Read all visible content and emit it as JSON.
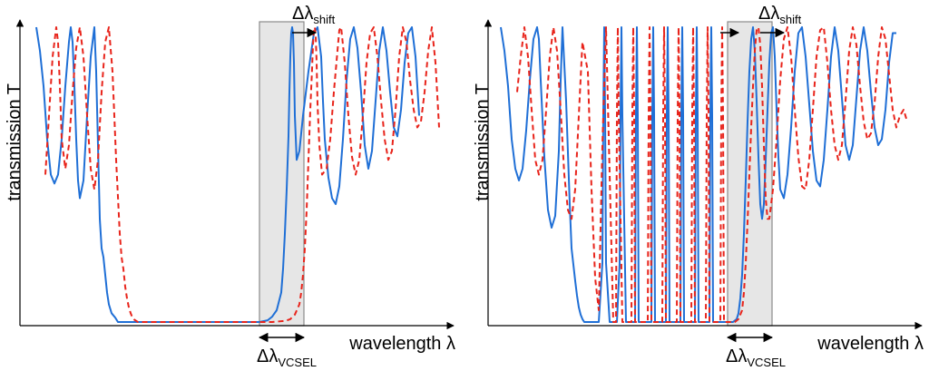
{
  "chart_data": [
    {
      "type": "line",
      "panel": "left",
      "xlabel": "wavelength λ",
      "ylabel": "transmission T",
      "grid": false,
      "legend": "none",
      "shaded_band_label": "Δλ",
      "shaded_band_sub": "VCSEL",
      "shift_label": "Δλ",
      "shift_sub": "shift",
      "series": [
        {
          "style": "solid",
          "color": "#1f6fd6",
          "x": [
            40,
            44,
            48,
            52,
            56,
            60,
            64,
            68,
            72,
            76,
            78,
            80,
            82,
            84,
            86,
            88,
            92,
            96,
            100,
            104,
            106,
            108,
            110,
            112,
            114,
            116,
            118,
            120,
            123,
            127,
            130,
            140,
            180,
            220,
            260,
            286,
            295,
            300,
            305,
            310,
            312,
            314,
            316,
            318,
            319,
            320,
            321,
            322,
            323,
            324,
            325,
            327,
            330,
            334,
            340,
            346,
            350,
            354,
            356,
            358,
            362,
            366,
            370,
            374,
            378,
            382,
            386,
            390,
            394,
            398,
            402,
            406,
            410,
            414,
            418,
            422,
            426,
            430,
            434,
            438,
            442,
            446,
            450,
            454,
            458,
            462
          ],
          "y": [
            1.0,
            0.92,
            0.8,
            0.62,
            0.5,
            0.47,
            0.5,
            0.62,
            0.8,
            0.95,
            1.0,
            0.95,
            0.8,
            0.62,
            0.48,
            0.42,
            0.48,
            0.7,
            0.9,
            1.0,
            0.85,
            0.6,
            0.35,
            0.25,
            0.22,
            0.16,
            0.1,
            0.06,
            0.03,
            0.015,
            0.0,
            0.0,
            0.0,
            0.0,
            0.0,
            0.0,
            0.006,
            0.018,
            0.04,
            0.1,
            0.18,
            0.3,
            0.45,
            0.63,
            0.78,
            0.9,
            0.98,
            1.0,
            0.98,
            0.88,
            0.7,
            0.55,
            0.58,
            0.7,
            0.85,
            0.98,
            1.0,
            0.9,
            0.75,
            0.62,
            0.49,
            0.42,
            0.4,
            0.46,
            0.62,
            0.82,
            0.96,
            1.0,
            0.93,
            0.78,
            0.6,
            0.52,
            0.58,
            0.75,
            0.92,
            1.0,
            0.92,
            0.78,
            0.66,
            0.63,
            0.72,
            0.88,
            0.98,
            1.0,
            0.9,
            0.7
          ]
        },
        {
          "style": "dashed",
          "color": "#e8241b",
          "x": [
            50,
            54,
            58,
            62,
            64,
            66,
            68,
            72,
            76,
            80,
            84,
            88,
            92,
            96,
            100,
            104,
            108,
            112,
            116,
            120,
            124,
            128,
            132,
            134,
            136,
            138,
            140,
            142,
            144,
            146,
            148,
            150,
            152,
            156,
            180,
            220,
            260,
            300,
            315,
            320,
            325,
            330,
            332,
            334,
            336,
            338,
            340,
            342,
            344,
            345,
            346,
            347,
            348,
            349,
            350,
            352,
            355,
            360,
            364,
            368,
            372,
            374,
            376,
            380,
            384,
            388,
            392,
            396,
            400,
            404,
            408,
            412,
            416,
            420,
            424,
            428,
            432,
            436,
            440,
            444,
            448,
            452,
            456,
            460,
            464,
            468,
            472,
            476,
            480,
            484
          ],
          "y": [
            0.5,
            0.7,
            0.9,
            1.0,
            0.95,
            0.8,
            0.62,
            0.52,
            0.6,
            0.78,
            0.93,
            1.0,
            0.9,
            0.7,
            0.52,
            0.45,
            0.55,
            0.78,
            0.95,
            1.0,
            0.85,
            0.55,
            0.3,
            0.22,
            0.18,
            0.12,
            0.08,
            0.05,
            0.03,
            0.015,
            0.008,
            0.004,
            0.0,
            0.0,
            0.0,
            0.0,
            0.0,
            0.0,
            0.004,
            0.01,
            0.025,
            0.06,
            0.1,
            0.16,
            0.25,
            0.38,
            0.55,
            0.72,
            0.86,
            0.94,
            0.99,
            1.0,
            0.97,
            0.88,
            0.74,
            0.6,
            0.5,
            0.52,
            0.62,
            0.78,
            0.92,
            0.99,
            1.0,
            0.88,
            0.7,
            0.56,
            0.5,
            0.55,
            0.7,
            0.88,
            0.98,
            1.0,
            0.9,
            0.75,
            0.62,
            0.55,
            0.58,
            0.72,
            0.9,
            1.0,
            0.95,
            0.82,
            0.72,
            0.66,
            0.68,
            0.78,
            0.92,
            1.0,
            0.88,
            0.66
          ]
        }
      ]
    },
    {
      "type": "line",
      "panel": "right",
      "xlabel": "wavelength λ",
      "ylabel": "transmission T",
      "grid": false,
      "legend": "none",
      "shaded_band_label": "Δλ",
      "shaded_band_sub": "VCSEL",
      "shift_label": "Δλ",
      "shift_sub": "shift",
      "series": [
        {
          "style": "solid",
          "color": "#1f6fd6",
          "x": [
            552,
            556,
            560,
            564,
            568,
            572,
            576,
            580,
            584,
            588,
            592,
            594,
            596,
            600,
            604,
            608,
            612,
            616,
            618,
            620,
            624,
            628,
            630,
            634,
            636,
            638,
            640,
            642,
            644,
            650,
            660,
            664,
            665,
            666,
            667,
            668,
            672,
            680,
            683,
            684,
            685,
            686,
            690,
            700,
            701,
            702,
            703,
            704,
            710,
            718,
            719,
            720,
            721,
            722,
            728,
            734,
            735,
            736,
            737,
            738,
            744,
            750,
            751,
            752,
            753,
            754,
            760,
            766,
            767,
            768,
            769,
            770,
            775,
            782,
            783,
            784,
            785,
            786,
            790,
            800,
            804,
            808,
            812,
            814,
            816,
            818,
            820,
            822,
            824,
            826,
            828,
            830,
            832,
            834,
            836,
            838,
            840,
            842,
            844,
            846,
            848,
            850,
            852,
            854,
            856,
            858,
            860,
            864,
            868,
            872,
            876,
            880,
            884,
            888,
            892,
            896,
            900,
            904,
            908,
            912,
            916,
            920,
            924,
            928,
            932,
            936,
            940,
            944,
            948,
            952,
            956,
            960,
            964,
            968,
            972,
            976,
            980,
            984,
            988
          ],
          "y": [
            1.0,
            0.92,
            0.8,
            0.62,
            0.52,
            0.48,
            0.52,
            0.65,
            0.82,
            0.96,
            1.0,
            0.96,
            0.82,
            0.56,
            0.38,
            0.32,
            0.36,
            0.58,
            0.82,
            1.0,
            0.75,
            0.4,
            0.25,
            0.14,
            0.09,
            0.05,
            0.025,
            0.01,
            0.0,
            0.0,
            0.0,
            0.2,
            0.7,
            1.0,
            0.7,
            0.2,
            0.0,
            0.0,
            0.2,
            0.7,
            1.0,
            0.7,
            0.0,
            0.0,
            0.7,
            1.0,
            0.7,
            0.0,
            0.0,
            0.0,
            0.7,
            1.0,
            0.7,
            0.0,
            0.0,
            0.0,
            0.7,
            1.0,
            0.7,
            0.0,
            0.0,
            0.0,
            0.7,
            1.0,
            0.7,
            0.0,
            0.0,
            0.0,
            0.7,
            1.0,
            0.7,
            0.0,
            0.0,
            0.0,
            0.7,
            1.0,
            0.7,
            0.0,
            0.0,
            0.0,
            0.0,
            0.0,
            0.01,
            0.03,
            0.08,
            0.16,
            0.3,
            0.48,
            0.68,
            0.85,
            0.96,
            1.0,
            0.92,
            0.75,
            0.56,
            0.4,
            0.35,
            0.4,
            0.55,
            0.72,
            0.88,
            0.98,
            1.0,
            0.9,
            0.72,
            0.56,
            0.45,
            0.42,
            0.5,
            0.66,
            0.85,
            0.98,
            1.0,
            0.9,
            0.74,
            0.58,
            0.48,
            0.46,
            0.55,
            0.72,
            0.9,
            1.0,
            0.92,
            0.76,
            0.6,
            0.55,
            0.6,
            0.76,
            0.92,
            1.0,
            0.92,
            0.78,
            0.66,
            0.6,
            0.62,
            0.72,
            0.88,
            0.98,
            0.98
          ]
        },
        {
          "style": "dashed",
          "color": "#e8241b",
          "x": [
            570,
            574,
            578,
            582,
            586,
            590,
            594,
            598,
            602,
            606,
            610,
            614,
            618,
            622,
            626,
            630,
            634,
            638,
            642,
            648,
            652,
            656,
            660,
            664,
            668,
            676,
            679,
            680,
            681,
            682,
            686,
            696,
            697,
            698,
            699,
            700,
            706,
            714,
            715,
            716,
            717,
            718,
            724,
            730,
            731,
            732,
            733,
            734,
            740,
            746,
            747,
            748,
            749,
            750,
            756,
            762,
            763,
            764,
            765,
            766,
            772,
            778,
            779,
            780,
            781,
            782,
            788,
            794,
            795,
            796,
            797,
            798,
            804,
            810,
            814,
            818,
            820,
            822,
            824,
            826,
            828,
            830,
            832,
            834,
            836,
            838,
            840,
            842,
            844,
            846,
            848,
            852,
            856,
            860,
            864,
            868,
            872,
            876,
            880,
            884,
            888,
            892,
            896,
            900,
            904,
            908,
            912,
            916,
            920,
            924,
            928,
            932,
            936,
            940,
            944,
            948,
            952,
            956,
            960,
            964,
            968,
            972,
            976,
            980,
            984,
            988,
            992,
            996,
            1000
          ],
          "y": [
            0.78,
            0.9,
            1.0,
            0.9,
            0.72,
            0.55,
            0.5,
            0.55,
            0.72,
            0.9,
            1.0,
            0.92,
            0.72,
            0.5,
            0.38,
            0.35,
            0.45,
            0.7,
            0.95,
            0.85,
            0.45,
            0.15,
            0.04,
            0.6,
            1.0,
            0.0,
            0.0,
            0.7,
            1.0,
            0.7,
            0.0,
            0.0,
            0.7,
            1.0,
            0.7,
            0.0,
            0.0,
            0.0,
            0.7,
            1.0,
            0.7,
            0.0,
            0.0,
            0.0,
            0.7,
            1.0,
            0.7,
            0.0,
            0.0,
            0.0,
            0.7,
            1.0,
            0.7,
            0.0,
            0.0,
            0.0,
            0.7,
            1.0,
            0.7,
            0.0,
            0.0,
            0.0,
            0.7,
            1.0,
            0.7,
            0.0,
            0.0,
            0.0,
            0.7,
            1.0,
            0.7,
            0.0,
            0.0,
            0.0,
            0.01,
            0.04,
            0.1,
            0.2,
            0.34,
            0.5,
            0.66,
            0.8,
            0.92,
            0.99,
            1.0,
            0.94,
            0.8,
            0.6,
            0.42,
            0.35,
            0.35,
            0.45,
            0.62,
            0.82,
            0.96,
            1.0,
            0.9,
            0.72,
            0.56,
            0.46,
            0.45,
            0.55,
            0.72,
            0.9,
            0.99,
            1.0,
            0.88,
            0.72,
            0.6,
            0.55,
            0.6,
            0.75,
            0.92,
            1.0,
            0.94,
            0.8,
            0.68,
            0.62,
            0.64,
            0.74,
            0.9,
            1.0,
            0.96,
            0.84,
            0.72,
            0.66,
            0.7,
            0.72,
            0.68
          ]
        }
      ]
    }
  ],
  "colors": {
    "series_solid": "#1f6fd6",
    "series_dashed": "#e8241b",
    "band_fill": "#e6e6e6",
    "band_stroke": "#8a8a8a"
  }
}
